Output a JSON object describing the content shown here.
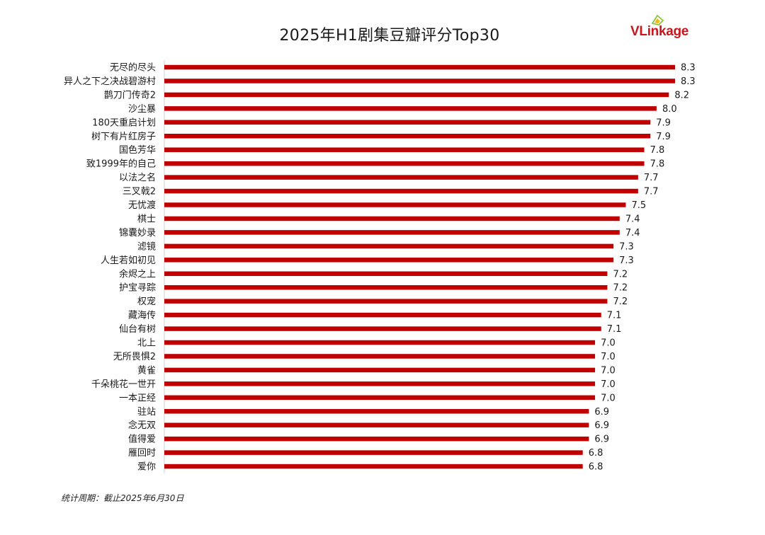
{
  "colors": {
    "bar": "#c00000",
    "text": "#1a1a1a",
    "axis": "#d0d0d0",
    "brand": "#c8161d",
    "brand_accent": "#8cc63f"
  },
  "logo": {
    "part1": "VL",
    "part2": "inkage",
    "icon": "vlinkage-logo-icon"
  },
  "footnote": "统计周期：截止2025年6月30日",
  "chart_data": {
    "type": "bar",
    "orientation": "horizontal",
    "title": "2025年H1剧集豆瓣评分Top30",
    "xlabel": "",
    "ylabel": "",
    "xlim": [
      0,
      8.3
    ],
    "grid": false,
    "legend": "none",
    "categories": [
      "无尽的尽头",
      "异人之下之决战碧游村",
      "鹊刀门传奇2",
      "沙尘暴",
      "180天重启计划",
      "树下有片红房子",
      "国色芳华",
      "致1999年的自己",
      "以法之名",
      "三叉戟2",
      "无忧渡",
      "棋士",
      "锦囊妙录",
      "滤镜",
      "人生若如初见",
      "余烬之上",
      "护宝寻踪",
      "权宠",
      "藏海传",
      "仙台有树",
      "北上",
      "无所畏惧2",
      "黄雀",
      "千朵桃花一世开",
      "一本正经",
      "驻站",
      "念无双",
      "值得爱",
      "雁回时",
      "爱你"
    ],
    "values": [
      8.3,
      8.3,
      8.2,
      8.0,
      7.9,
      7.9,
      7.8,
      7.8,
      7.7,
      7.7,
      7.5,
      7.4,
      7.4,
      7.3,
      7.3,
      7.2,
      7.2,
      7.2,
      7.1,
      7.1,
      7.0,
      7.0,
      7.0,
      7.0,
      7.0,
      6.9,
      6.9,
      6.9,
      6.8,
      6.8
    ],
    "data_labels": [
      "8.3",
      "8.3",
      "8.2",
      "8.0",
      "7.9",
      "7.9",
      "7.8",
      "7.8",
      "7.7",
      "7.7",
      "7.5",
      "7.4",
      "7.4",
      "7.3",
      "7.3",
      "7.2",
      "7.2",
      "7.2",
      "7.1",
      "7.1",
      "7.0",
      "7.0",
      "7.0",
      "7.0",
      "7.0",
      "6.9",
      "6.9",
      "6.9",
      "6.8",
      "6.8"
    ]
  }
}
